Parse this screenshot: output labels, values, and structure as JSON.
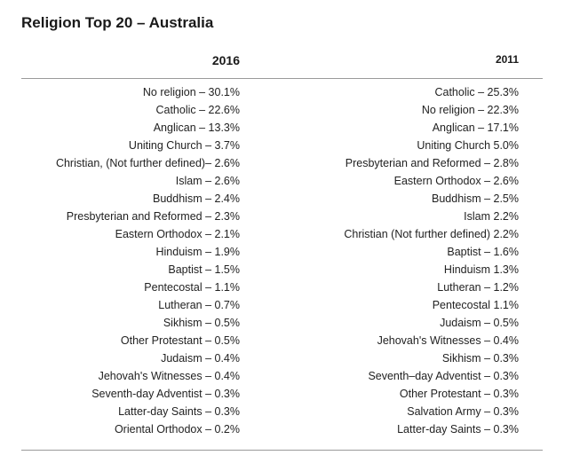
{
  "title": "Religion Top 20 – Australia",
  "columns": [
    {
      "heading": "2016",
      "rows": [
        "No religion – 30.1%",
        "Catholic – 22.6%",
        "Anglican – 13.3%",
        "Uniting Church – 3.7%",
        "Christian, (Not further defined)– 2.6%",
        "Islam – 2.6%",
        "Buddhism – 2.4%",
        "Presbyterian and Reformed – 2.3%",
        "Eastern Orthodox – 2.1%",
        "Hinduism – 1.9%",
        "Baptist – 1.5%",
        "Pentecostal – 1.1%",
        "Lutheran – 0.7%",
        "Sikhism – 0.5%",
        "Other Protestant – 0.5%",
        "Judaism – 0.4%",
        "Jehovah's Witnesses – 0.4%",
        "Seventh-day Adventist – 0.3%",
        "Latter-day Saints – 0.3%",
        "Oriental Orthodox – 0.2%"
      ]
    },
    {
      "heading": "2011",
      "rows": [
        "Catholic – 25.3%",
        "No religion – 22.3%",
        "Anglican – 17.1%",
        "Uniting Church 5.0%",
        "Presbyterian and Reformed – 2.8%",
        "Eastern Orthodox – 2.6%",
        "Buddhism – 2.5%",
        "Islam 2.2%",
        "Christian (Not further defined) 2.2%",
        "Baptist – 1.6%",
        "Hinduism 1.3%",
        "Lutheran – 1.2%",
        "Pentecostal 1.1%",
        "Judaism – 0.5%",
        "Jehovah's Witnesses – 0.4%",
        "Sikhism – 0.3%",
        "Seventh–day Adventist – 0.3%",
        "Other Protestant – 0.3%",
        "Salvation Army – 0.3%",
        "Latter-day Saints – 0.3%"
      ]
    }
  ]
}
